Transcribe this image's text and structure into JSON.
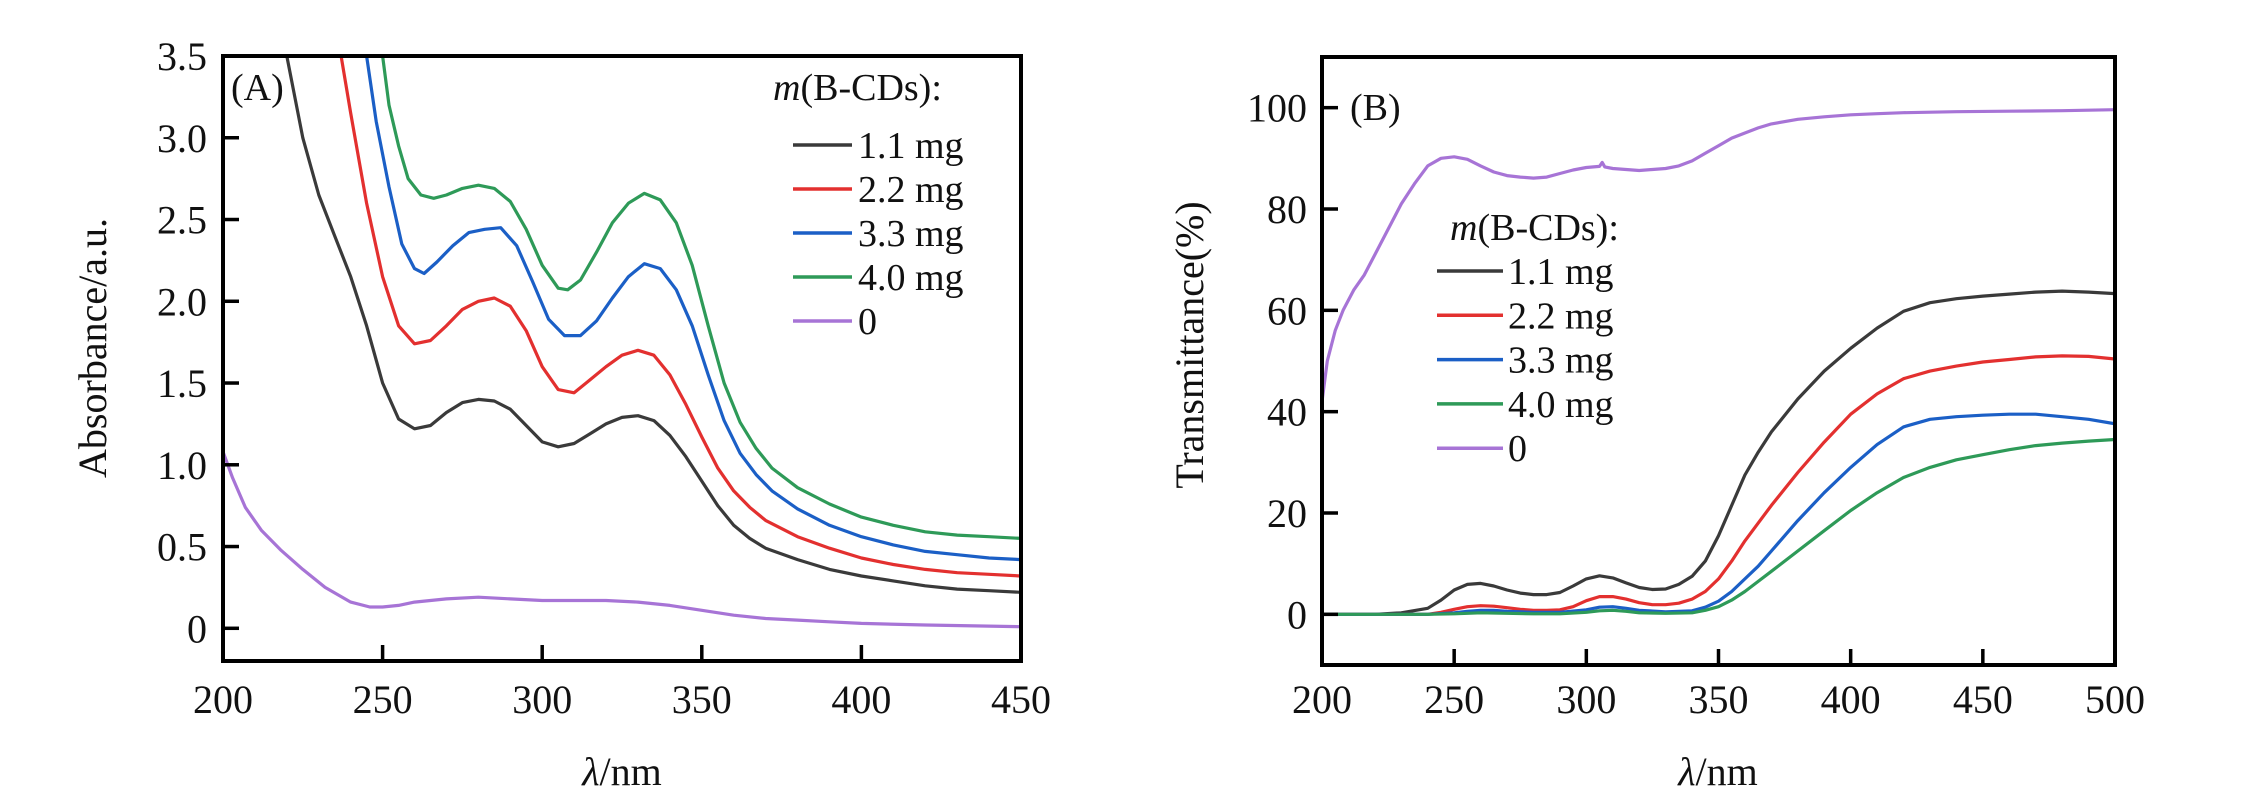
{
  "chart_data": [
    {
      "type": "line",
      "panel_label": "(A)",
      "xlabel_var": "λ",
      "xlabel_unit": "/nm",
      "ylabel": "Absorbance/a.u.",
      "xlim": [
        200,
        450
      ],
      "ylim": [
        -0.2,
        3.5
      ],
      "xticks": [
        200,
        250,
        300,
        350,
        400,
        450
      ],
      "xtick_labels": [
        "200",
        "250",
        "300",
        "350",
        "400",
        "450"
      ],
      "yticks": [
        0,
        0.5,
        1.0,
        1.5,
        2.0,
        2.5,
        3.0,
        3.5
      ],
      "ytick_labels": [
        "0",
        "0.5",
        "1.0",
        "1.5",
        "2.0",
        "2.5",
        "3.0",
        "3.5"
      ],
      "grid": false,
      "legend": {
        "placement": "top-right",
        "title_italic": "m",
        "title_rest": "(B-CDs):",
        "entries": [
          "1.1 mg",
          "2.2 mg",
          "3.3 mg",
          "4.0 mg",
          "0"
        ]
      },
      "series": [
        {
          "name": "1.1 mg",
          "color": "#3a3a3a",
          "x": [
            220,
            225,
            230,
            235,
            240,
            245,
            250,
            255,
            260,
            265,
            270,
            275,
            280,
            285,
            290,
            295,
            300,
            305,
            310,
            315,
            320,
            325,
            330,
            335,
            340,
            345,
            350,
            355,
            360,
            365,
            370,
            380,
            390,
            400,
            410,
            420,
            430,
            440,
            450
          ],
          "y": [
            3.5,
            3.0,
            2.65,
            2.4,
            2.15,
            1.85,
            1.5,
            1.28,
            1.22,
            1.24,
            1.32,
            1.38,
            1.4,
            1.39,
            1.34,
            1.24,
            1.14,
            1.11,
            1.13,
            1.19,
            1.25,
            1.29,
            1.3,
            1.27,
            1.18,
            1.05,
            0.9,
            0.75,
            0.63,
            0.55,
            0.49,
            0.42,
            0.36,
            0.32,
            0.29,
            0.26,
            0.24,
            0.23,
            0.22
          ]
        },
        {
          "name": "2.2 mg",
          "color": "#e3302f",
          "x": [
            237,
            240,
            245,
            250,
            255,
            260,
            265,
            270,
            275,
            280,
            285,
            290,
            295,
            300,
            305,
            310,
            315,
            320,
            325,
            330,
            335,
            340,
            345,
            350,
            355,
            360,
            365,
            370,
            380,
            390,
            400,
            410,
            420,
            430,
            440,
            450
          ],
          "y": [
            3.5,
            3.15,
            2.6,
            2.15,
            1.85,
            1.74,
            1.76,
            1.85,
            1.95,
            2.0,
            2.02,
            1.97,
            1.82,
            1.6,
            1.46,
            1.44,
            1.52,
            1.6,
            1.67,
            1.7,
            1.67,
            1.55,
            1.37,
            1.17,
            0.98,
            0.84,
            0.74,
            0.66,
            0.56,
            0.49,
            0.43,
            0.39,
            0.36,
            0.34,
            0.33,
            0.32
          ]
        },
        {
          "name": "3.3 mg",
          "color": "#1b5fc6",
          "x": [
            245,
            248,
            252,
            256,
            260,
            263,
            267,
            272,
            277,
            282,
            287,
            292,
            297,
            302,
            307,
            312,
            317,
            322,
            327,
            332,
            337,
            342,
            347,
            352,
            357,
            362,
            367,
            372,
            380,
            390,
            400,
            410,
            420,
            430,
            440,
            450
          ],
          "y": [
            3.5,
            3.1,
            2.7,
            2.35,
            2.2,
            2.17,
            2.24,
            2.34,
            2.42,
            2.44,
            2.45,
            2.34,
            2.12,
            1.89,
            1.79,
            1.79,
            1.88,
            2.02,
            2.15,
            2.23,
            2.2,
            2.07,
            1.85,
            1.55,
            1.27,
            1.07,
            0.94,
            0.84,
            0.73,
            0.63,
            0.56,
            0.51,
            0.47,
            0.45,
            0.43,
            0.42
          ]
        },
        {
          "name": "4.0 mg",
          "color": "#2e9a58",
          "x": [
            250,
            252,
            255,
            258,
            262,
            266,
            270,
            275,
            280,
            285,
            290,
            295,
            300,
            305,
            308,
            312,
            317,
            322,
            327,
            332,
            337,
            342,
            347,
            352,
            357,
            362,
            367,
            372,
            380,
            390,
            400,
            410,
            420,
            430,
            440,
            450
          ],
          "y": [
            3.5,
            3.2,
            2.95,
            2.75,
            2.65,
            2.63,
            2.65,
            2.69,
            2.71,
            2.69,
            2.61,
            2.44,
            2.22,
            2.08,
            2.07,
            2.13,
            2.3,
            2.48,
            2.6,
            2.66,
            2.62,
            2.48,
            2.22,
            1.85,
            1.5,
            1.26,
            1.1,
            0.98,
            0.86,
            0.76,
            0.68,
            0.63,
            0.59,
            0.57,
            0.56,
            0.55
          ]
        },
        {
          "name": "0",
          "color": "#a774d6",
          "x": [
            200,
            203,
            207,
            212,
            218,
            225,
            232,
            240,
            246,
            250,
            255,
            260,
            270,
            280,
            290,
            300,
            310,
            320,
            330,
            340,
            350,
            360,
            370,
            380,
            390,
            400,
            420,
            450
          ],
          "y": [
            1.08,
            0.92,
            0.74,
            0.6,
            0.48,
            0.36,
            0.25,
            0.16,
            0.13,
            0.13,
            0.14,
            0.16,
            0.18,
            0.19,
            0.18,
            0.17,
            0.17,
            0.17,
            0.16,
            0.14,
            0.11,
            0.08,
            0.06,
            0.05,
            0.04,
            0.03,
            0.02,
            0.01
          ]
        }
      ]
    },
    {
      "type": "line",
      "panel_label": "(B)",
      "xlabel_var": "λ",
      "xlabel_unit": "/nm",
      "ylabel": "Transmittance(%)",
      "xlim": [
        200,
        500
      ],
      "ylim": [
        -10,
        110
      ],
      "xticks": [
        200,
        250,
        300,
        350,
        400,
        450,
        500
      ],
      "xtick_labels": [
        "200",
        "250",
        "300",
        "350",
        "400",
        "450",
        "500"
      ],
      "yticks": [
        0,
        20,
        40,
        60,
        80,
        100
      ],
      "ytick_labels": [
        "0",
        "20",
        "40",
        "60",
        "80",
        "100"
      ],
      "grid": false,
      "legend": {
        "placement": "center-left",
        "title_italic": "m",
        "title_rest": "(B-CDs):",
        "entries": [
          "1.1 mg",
          "2.2 mg",
          "3.3 mg",
          "4.0 mg",
          "0"
        ]
      },
      "series": [
        {
          "name": "1.1 mg",
          "color": "#3a3a3a",
          "x": [
            200,
            220,
            230,
            240,
            245,
            250,
            255,
            260,
            265,
            270,
            275,
            280,
            285,
            290,
            295,
            300,
            305,
            310,
            315,
            320,
            325,
            330,
            335,
            340,
            345,
            350,
            355,
            360,
            365,
            370,
            380,
            390,
            400,
            410,
            420,
            430,
            440,
            450,
            460,
            470,
            480,
            490,
            500
          ],
          "y": [
            0,
            0,
            0.3,
            1.2,
            2.8,
            4.8,
            5.9,
            6.1,
            5.6,
            4.8,
            4.2,
            3.9,
            3.9,
            4.3,
            5.6,
            7.0,
            7.6,
            7.2,
            6.2,
            5.3,
            4.9,
            5.0,
            5.9,
            7.5,
            10.5,
            15.5,
            21.5,
            27.5,
            32.0,
            36.0,
            42.5,
            48.0,
            52.5,
            56.5,
            59.8,
            61.5,
            62.3,
            62.8,
            63.2,
            63.6,
            63.8,
            63.6,
            63.3
          ]
        },
        {
          "name": "2.2 mg",
          "color": "#e3302f",
          "x": [
            200,
            240,
            245,
            250,
            255,
            260,
            265,
            270,
            275,
            280,
            285,
            290,
            295,
            300,
            305,
            310,
            315,
            320,
            325,
            330,
            335,
            340,
            345,
            350,
            355,
            360,
            365,
            370,
            380,
            390,
            400,
            410,
            420,
            430,
            440,
            450,
            460,
            470,
            480,
            490,
            500
          ],
          "y": [
            0,
            0,
            0.4,
            1.0,
            1.5,
            1.7,
            1.6,
            1.3,
            1.0,
            0.8,
            0.8,
            0.9,
            1.5,
            2.7,
            3.5,
            3.5,
            3.0,
            2.3,
            1.9,
            1.9,
            2.2,
            3.0,
            4.5,
            7.0,
            10.5,
            14.5,
            18.0,
            21.5,
            28.0,
            34.0,
            39.5,
            43.5,
            46.5,
            48.0,
            49.0,
            49.8,
            50.3,
            50.8,
            51.0,
            50.9,
            50.4
          ]
        },
        {
          "name": "3.3 mg",
          "color": "#1b5fc6",
          "x": [
            200,
            240,
            250,
            255,
            260,
            265,
            270,
            280,
            290,
            300,
            305,
            310,
            315,
            320,
            330,
            340,
            345,
            350,
            355,
            360,
            365,
            370,
            380,
            390,
            400,
            410,
            420,
            430,
            440,
            450,
            460,
            470,
            480,
            490,
            500
          ],
          "y": [
            0,
            0,
            0.3,
            0.6,
            0.8,
            0.8,
            0.6,
            0.4,
            0.4,
            0.9,
            1.4,
            1.5,
            1.2,
            0.8,
            0.5,
            0.7,
            1.4,
            2.6,
            4.5,
            7.0,
            9.5,
            12.5,
            18.5,
            24.0,
            29.0,
            33.5,
            37.0,
            38.5,
            39.0,
            39.3,
            39.5,
            39.5,
            39.0,
            38.5,
            37.6
          ]
        },
        {
          "name": "4.0 mg",
          "color": "#2e9a58",
          "x": [
            200,
            240,
            250,
            260,
            270,
            280,
            290,
            300,
            305,
            310,
            315,
            320,
            330,
            340,
            345,
            350,
            355,
            360,
            365,
            370,
            380,
            390,
            400,
            410,
            420,
            430,
            440,
            450,
            460,
            470,
            480,
            490,
            500
          ],
          "y": [
            0,
            0,
            0.1,
            0.3,
            0.2,
            0.1,
            0.1,
            0.4,
            0.7,
            0.8,
            0.6,
            0.3,
            0.2,
            0.3,
            0.8,
            1.5,
            2.8,
            4.5,
            6.5,
            8.5,
            12.5,
            16.5,
            20.5,
            24.0,
            27.0,
            29.0,
            30.5,
            31.5,
            32.5,
            33.3,
            33.8,
            34.2,
            34.5
          ]
        },
        {
          "name": "0",
          "color": "#a774d6",
          "x": [
            200,
            202,
            205,
            208,
            212,
            216,
            220,
            225,
            230,
            235,
            240,
            245,
            250,
            255,
            260,
            265,
            270,
            275,
            280,
            285,
            290,
            295,
            300,
            305,
            306,
            307,
            310,
            315,
            320,
            325,
            330,
            335,
            340,
            345,
            350,
            355,
            360,
            365,
            370,
            380,
            390,
            400,
            410,
            420,
            440,
            460,
            480,
            490,
            500
          ],
          "y": [
            42,
            50,
            56,
            60,
            64,
            67,
            71,
            76,
            81,
            85,
            88.5,
            90,
            90.3,
            89.8,
            88.5,
            87.3,
            86.6,
            86.3,
            86.1,
            86.3,
            87.0,
            87.7,
            88.2,
            88.4,
            89.2,
            88.3,
            88.0,
            87.8,
            87.6,
            87.8,
            88.0,
            88.5,
            89.5,
            91.0,
            92.5,
            94.0,
            95.0,
            96.0,
            96.8,
            97.7,
            98.2,
            98.6,
            98.8,
            99.0,
            99.2,
            99.3,
            99.4,
            99.5,
            99.6
          ]
        }
      ]
    }
  ]
}
